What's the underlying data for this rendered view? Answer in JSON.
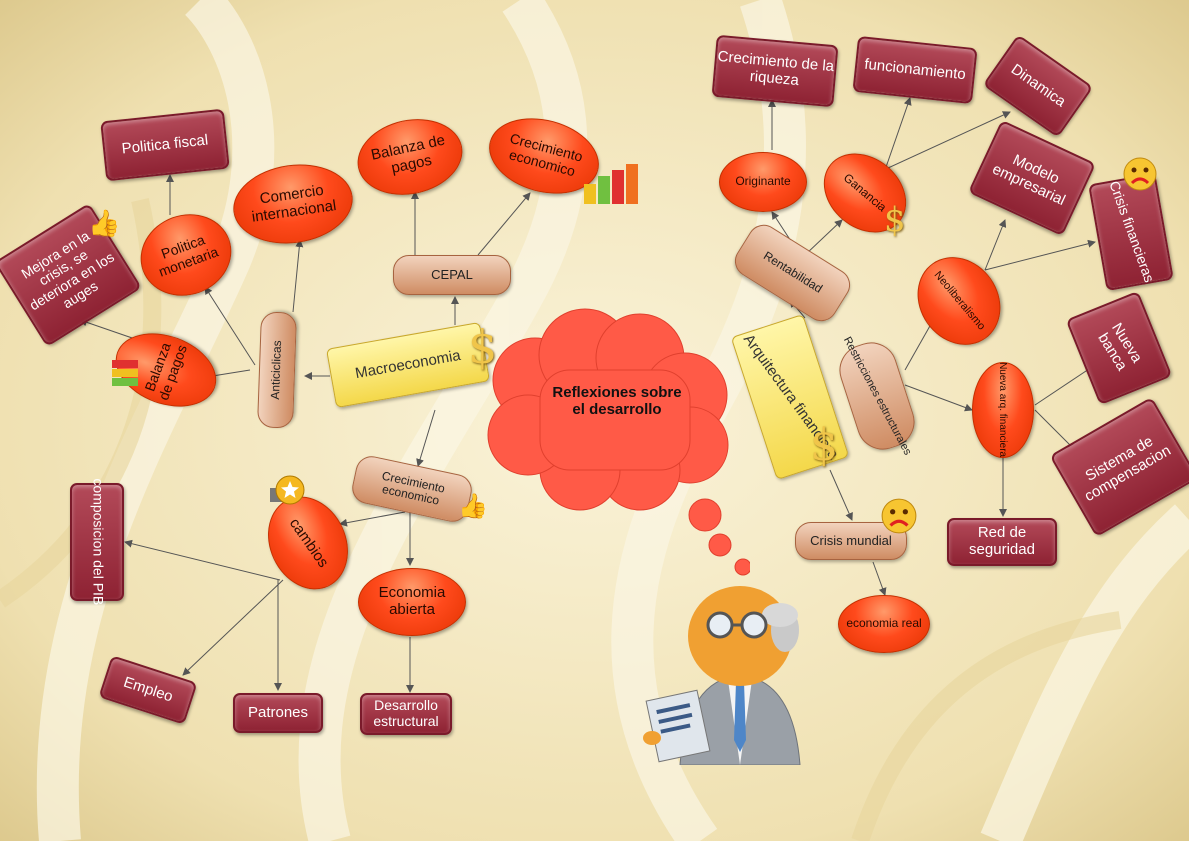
{
  "center": {
    "title": "Reflexiones sobre el desarrollo"
  },
  "nodes": {
    "politica_fiscal": "Politica fiscal",
    "comercio_internacional": "Comercio internacional",
    "balanza_pagos_top": "Balanza de pagos",
    "crecimiento_economico_top": "Crecimiento economico",
    "mejora_crisis": "Mejora en la crisis, se deteriora en los auges",
    "politica_monetaria": "Politica monetaria",
    "cepal": "CEPAL",
    "balanza_pagos_left": "Balanza de pagos",
    "anticiclicas": "Anticiclicas",
    "macroeconomia": "Macroeconomia",
    "crecimiento_economico_mid": "Crecimiento economico",
    "composicion_pib": "composicion del PIB",
    "cambios": "cambios",
    "economia_abierta": "Economia abierta",
    "empleo": "Empleo",
    "patrones": "Patrones",
    "desarrollo_estructural": "Desarrollo estructural",
    "crecimiento_riqueza": "Crecimiento de la riqueza",
    "funcionamiento": "funcionamiento",
    "dinamica": "Dinamica",
    "originante": "Originante",
    "ganancia": "Ganancia",
    "modelo_empresarial": "Modelo empresarial",
    "crisis_financieras": "Crisis financieras",
    "rentabilidad": "Rentabilidad",
    "neoliberalismo": "Neoliberalismo",
    "arquitectura_financiera": "Arquitectura financiera",
    "restricciones_estructurales": "Restricciones estructurales",
    "nueva_banca": "Nueva banca",
    "nueva_arq_financiera": "Nueva arq. financiera",
    "sistema_compensacion": "Sistema de compensacion",
    "crisis_mundial": "Crisis mundial",
    "red_seguridad": "Red de seguridad",
    "economia_real": "economia real"
  },
  "colors": {
    "rect_fill": "#9e2f40",
    "oval_fill": "#ff4a1c",
    "pill_fill": "#e8b898",
    "yellow_fill": "#f7e06a",
    "cloud_fill": "#ff5a47",
    "background": "#f3e9c8"
  },
  "icons": [
    "dollar-icon",
    "bar-chart-icon",
    "thumbs-up-icon",
    "sad-face-icon",
    "star-badge-icon",
    "thinking-man-icon"
  ]
}
